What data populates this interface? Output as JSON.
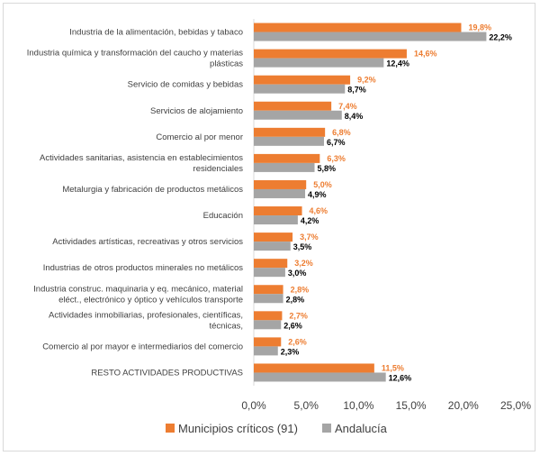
{
  "chart_data": {
    "type": "bar",
    "orientation": "horizontal",
    "categories": [
      [
        "Industria de la alimentación, bebidas y tabaco"
      ],
      [
        "Industria química y transformación del caucho y materias",
        "plásticas"
      ],
      [
        "Servicio de comidas y bebidas"
      ],
      [
        "Servicios de alojamiento"
      ],
      [
        "Comercio al por menor"
      ],
      [
        "Actividades sanitarias, asistencia en establecimientos",
        "residenciales"
      ],
      [
        "Metalurgia y fabricación de productos metálicos"
      ],
      [
        "Educación"
      ],
      [
        "Actividades artísticas, recreativas y otros servicios"
      ],
      [
        "Industrias de otros productos minerales no metálicos"
      ],
      [
        "Industria construc. maquinaria y eq. mecánico, material",
        "eléct., electrónico y óptico y vehículos transporte"
      ],
      [
        "Actividades inmobiliarias, profesionales, científicas,",
        "técnicas,"
      ],
      [
        "Comercio al por mayor e intermediarios del comercio"
      ],
      [
        "RESTO ACTIVIDADES PRODUCTIVAS"
      ]
    ],
    "series": [
      {
        "name": "Municipios críticos (91)",
        "color": "#ed7d31",
        "values": [
          19.8,
          14.6,
          9.2,
          7.4,
          6.8,
          6.3,
          5.0,
          4.6,
          3.7,
          3.2,
          2.8,
          2.7,
          2.6,
          11.5
        ],
        "labels": [
          "19,8%",
          "14,6%",
          "9,2%",
          "7,4%",
          "6,8%",
          "6,3%",
          "5,0%",
          "4,6%",
          "3,7%",
          "3,2%",
          "2,8%",
          "2,7%",
          "2,6%",
          "11,5%"
        ]
      },
      {
        "name": "Andalucía",
        "color": "#a5a5a5",
        "values": [
          22.2,
          12.4,
          8.7,
          8.4,
          6.7,
          5.8,
          4.9,
          4.2,
          3.5,
          3.0,
          2.8,
          2.6,
          2.3,
          12.6
        ],
        "labels": [
          "22,2%",
          "12,4%",
          "8,7%",
          "8,4%",
          "6,7%",
          "5,8%",
          "4,9%",
          "4,2%",
          "3,5%",
          "3,0%",
          "2,8%",
          "2,6%",
          "2,3%",
          "12,6%"
        ]
      }
    ],
    "xlim": [
      0,
      25
    ],
    "xticks": [
      0,
      5,
      10,
      15,
      20,
      25
    ],
    "xtick_labels": [
      "0,0%",
      "5,0%",
      "10,0%",
      "15,0%",
      "20,0%",
      "25,0%"
    ],
    "grid": false,
    "legend_position": "bottom",
    "title": "",
    "xlabel": "",
    "ylabel": ""
  }
}
